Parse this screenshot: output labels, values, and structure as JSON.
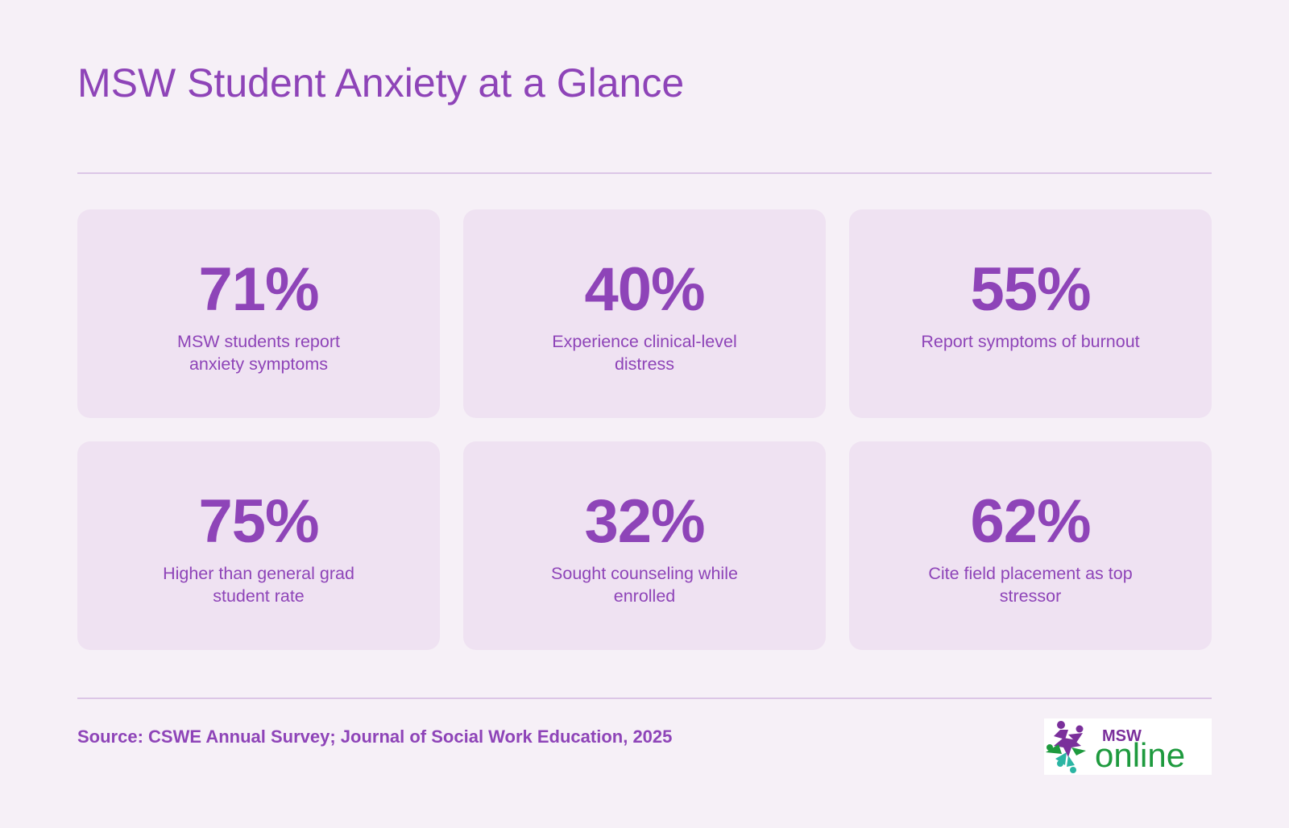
{
  "title": "MSW Student Anxiety at a Glance",
  "stats": [
    {
      "value": "71%",
      "label": "MSW students report anxiety symptoms"
    },
    {
      "value": "40%",
      "label": "Experience clinical-level distress"
    },
    {
      "value": "55%",
      "label": "Report symptoms of burnout"
    },
    {
      "value": "75%",
      "label": "Higher than general grad student rate"
    },
    {
      "value": "32%",
      "label": "Sought counseling while enrolled"
    },
    {
      "value": "62%",
      "label": "Cite field placement as top stressor"
    }
  ],
  "source": "Source: CSWE Annual Survey; Journal of Social Work Education, 2025",
  "logo": {
    "top_text": "MSW",
    "main_text": "online",
    "colors": {
      "purple": "#7a2f9b",
      "green": "#1e9a3e",
      "teal": "#2bb5a3"
    }
  },
  "colors": {
    "background": "#f6f0f7",
    "card": "#efe2f2",
    "accent": "#8e44b8",
    "rule": "#dcc6e6"
  }
}
